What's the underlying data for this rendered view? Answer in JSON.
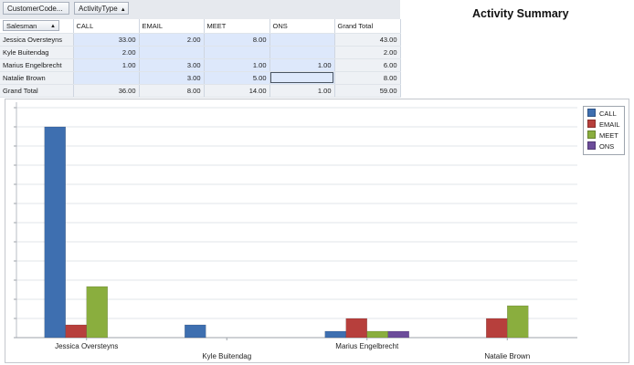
{
  "filters": {
    "customer_code": "CustomerCode...",
    "activity_type": "ActivityType",
    "sort_arrow": "▲"
  },
  "grid": {
    "row_field": "Salesman",
    "columns": [
      "CALL",
      "EMAIL",
      "MEET",
      "ONS",
      "Grand Total"
    ],
    "rows": [
      {
        "name": "Jessica Oversteyns",
        "cells": [
          "33.00",
          "2.00",
          "8.00",
          "",
          "43.00"
        ]
      },
      {
        "name": "Kyle Buitendag",
        "cells": [
          "2.00",
          "",
          "",
          "",
          "2.00"
        ]
      },
      {
        "name": "Marius Engelbrecht",
        "cells": [
          "1.00",
          "3.00",
          "1.00",
          "1.00",
          "6.00"
        ]
      },
      {
        "name": "Natalie Brown",
        "cells": [
          "",
          "3.00",
          "5.00",
          "",
          "8.00"
        ]
      }
    ],
    "total": {
      "name": "Grand Total",
      "cells": [
        "36.00",
        "8.00",
        "14.00",
        "1.00",
        "59.00"
      ]
    }
  },
  "title": "Activity Summary",
  "chart_data": {
    "type": "bar",
    "categories": [
      "Jessica Oversteyns",
      "Kyle Buitendag",
      "Marius Engelbrecht",
      "Natalie Brown"
    ],
    "series": [
      {
        "name": "CALL",
        "values": [
          33,
          2,
          1,
          0
        ]
      },
      {
        "name": "EMAIL",
        "values": [
          2,
          0,
          3,
          3
        ]
      },
      {
        "name": "MEET",
        "values": [
          8,
          0,
          1,
          5
        ]
      },
      {
        "name": "ONS",
        "values": [
          0,
          0,
          1,
          0
        ]
      }
    ],
    "colors": [
      "#3e6fb0",
      "#b73f3c",
      "#8aae3e",
      "#6c4c9a"
    ],
    "ylim": [
      0,
      36
    ],
    "grid": true,
    "legend_position": "top-right"
  }
}
